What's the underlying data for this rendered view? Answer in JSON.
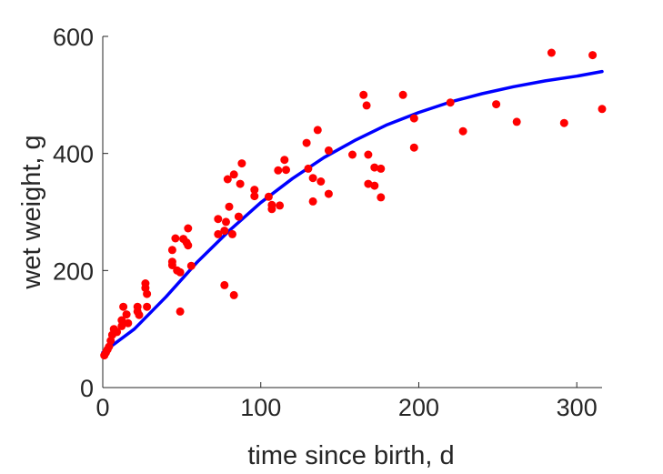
{
  "chart_data": {
    "type": "scatter",
    "title": "",
    "xlabel": "time since birth, d",
    "ylabel": "wet weight, g",
    "xlim": [
      0,
      316
    ],
    "ylim": [
      0,
      600
    ],
    "xticks": [
      0,
      100,
      200,
      300
    ],
    "yticks": [
      0,
      200,
      400,
      600
    ],
    "grid": false,
    "legend": "none",
    "colors": {
      "points": "#ff0000",
      "fit_line": "#0000ff",
      "axes": "#262626"
    },
    "series": [
      {
        "type": "scatter",
        "points": [
          [
            1,
            55
          ],
          [
            2,
            60
          ],
          [
            3,
            65
          ],
          [
            4,
            70
          ],
          [
            5,
            80
          ],
          [
            6,
            90
          ],
          [
            7,
            100
          ],
          [
            9,
            95
          ],
          [
            12,
            115
          ],
          [
            12,
            105
          ],
          [
            13,
            138
          ],
          [
            15,
            125
          ],
          [
            16,
            110
          ],
          [
            22,
            130
          ],
          [
            22,
            138
          ],
          [
            23,
            124
          ],
          [
            27,
            178
          ],
          [
            27,
            170
          ],
          [
            28,
            160
          ],
          [
            28,
            138
          ],
          [
            44,
            215
          ],
          [
            44,
            235
          ],
          [
            44,
            209
          ],
          [
            46,
            255
          ],
          [
            47,
            200
          ],
          [
            49,
            197
          ],
          [
            49,
            130
          ],
          [
            51,
            254
          ],
          [
            53,
            248
          ],
          [
            54,
            243
          ],
          [
            54,
            272
          ],
          [
            56,
            208
          ],
          [
            73,
            288
          ],
          [
            73,
            262
          ],
          [
            77,
            268
          ],
          [
            77,
            175
          ],
          [
            78,
            283
          ],
          [
            79,
            356
          ],
          [
            80,
            309
          ],
          [
            82,
            262
          ],
          [
            83,
            364
          ],
          [
            83,
            158
          ],
          [
            86,
            292
          ],
          [
            87,
            348
          ],
          [
            88,
            383
          ],
          [
            96,
            338
          ],
          [
            96,
            327
          ],
          [
            105,
            326
          ],
          [
            107,
            305
          ],
          [
            107,
            312
          ],
          [
            111,
            371
          ],
          [
            112,
            311
          ],
          [
            115,
            389
          ],
          [
            116,
            372
          ],
          [
            129,
            418
          ],
          [
            130,
            374
          ],
          [
            133,
            318
          ],
          [
            133,
            358
          ],
          [
            136,
            440
          ],
          [
            138,
            352
          ],
          [
            143,
            405
          ],
          [
            143,
            331
          ],
          [
            158,
            398
          ],
          [
            165,
            500
          ],
          [
            167,
            482
          ],
          [
            168,
            398
          ],
          [
            168,
            348
          ],
          [
            172,
            376
          ],
          [
            172,
            345
          ],
          [
            176,
            325
          ],
          [
            176,
            374
          ],
          [
            190,
            500
          ],
          [
            197,
            460
          ],
          [
            197,
            410
          ],
          [
            220,
            487
          ],
          [
            228,
            438
          ],
          [
            249,
            484
          ],
          [
            262,
            454
          ],
          [
            284,
            572
          ],
          [
            292,
            452
          ],
          [
            310,
            568
          ],
          [
            316,
            476
          ]
        ]
      },
      {
        "type": "line",
        "points": [
          [
            0,
            60
          ],
          [
            20,
            100
          ],
          [
            40,
            155
          ],
          [
            60,
            215
          ],
          [
            80,
            268
          ],
          [
            100,
            316
          ],
          [
            120,
            357
          ],
          [
            140,
            393
          ],
          [
            160,
            423
          ],
          [
            180,
            449
          ],
          [
            200,
            470
          ],
          [
            220,
            488
          ],
          [
            240,
            502
          ],
          [
            260,
            514
          ],
          [
            280,
            524
          ],
          [
            300,
            532
          ],
          [
            316,
            540
          ]
        ]
      }
    ]
  }
}
